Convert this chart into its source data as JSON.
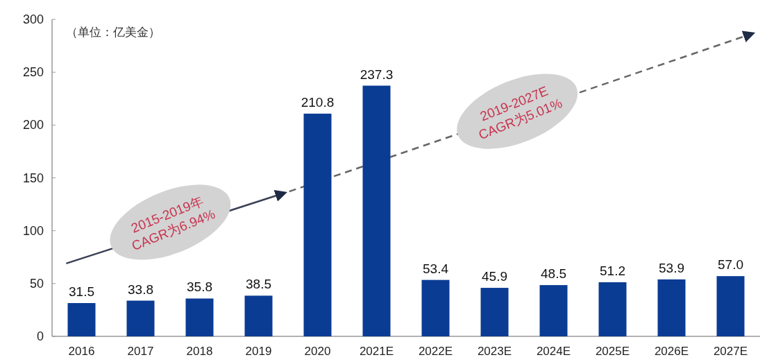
{
  "chart_data": {
    "type": "bar",
    "categories": [
      "2016",
      "2017",
      "2018",
      "2019",
      "2020",
      "2021E",
      "2022E",
      "2023E",
      "2024E",
      "2025E",
      "2026E",
      "2027E"
    ],
    "values": [
      31.5,
      33.8,
      35.8,
      38.5,
      210.8,
      237.3,
      53.4,
      45.9,
      48.5,
      51.2,
      53.9,
      57.0
    ],
    "value_labels": [
      "31.5",
      "33.8",
      "35.8",
      "38.5",
      "210.8",
      "237.3",
      "53.4",
      "45.9",
      "48.5",
      "51.2",
      "53.9",
      "57.0"
    ],
    "color": "#0b3c94",
    "ylim": [
      0,
      300
    ],
    "yticks": [
      0,
      50,
      100,
      150,
      200,
      250,
      300
    ],
    "annotations": [
      "（单位：亿美金）",
      "2015-2019年\nCAGR为6.94%",
      "2019-2027E\nCAGR为5.01%"
    ]
  }
}
